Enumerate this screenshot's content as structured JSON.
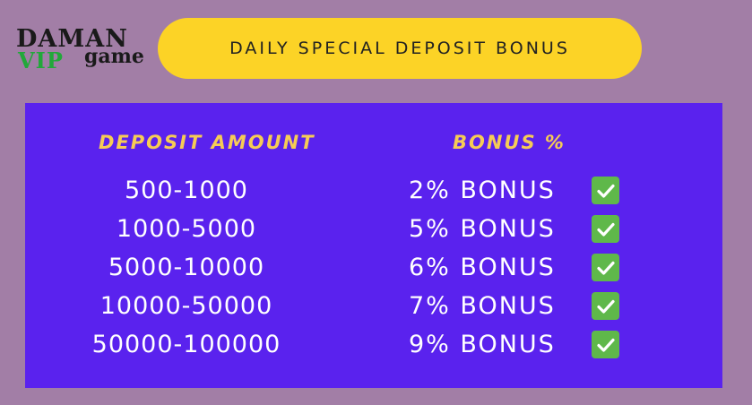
{
  "logo": {
    "line1": "DAMAN",
    "vip": "VIP",
    "game": "game"
  },
  "banner": {
    "title": "DAILY SPECIAL DEPOSIT BONUS"
  },
  "table": {
    "headers": {
      "amount": "DEPOSIT AMOUNT",
      "bonus": "BONUS %"
    },
    "rows": [
      {
        "amount": "500-1000",
        "bonus": "2% BONUS"
      },
      {
        "amount": "1000-5000",
        "bonus": "5% BONUS"
      },
      {
        "amount": "5000-10000",
        "bonus": "6% BONUS"
      },
      {
        "amount": "10000-50000",
        "bonus": "7% BONUS"
      },
      {
        "amount": "50000-100000",
        "bonus": "9% BONUS"
      }
    ]
  },
  "icons": {
    "check": "check-mark-icon"
  },
  "colors": {
    "background": "#a27ea6",
    "banner": "#fcd326",
    "panel": "#5a22ee",
    "header_text": "#f6cc55",
    "check": "#5fb84a",
    "vip": "#22a83a"
  }
}
